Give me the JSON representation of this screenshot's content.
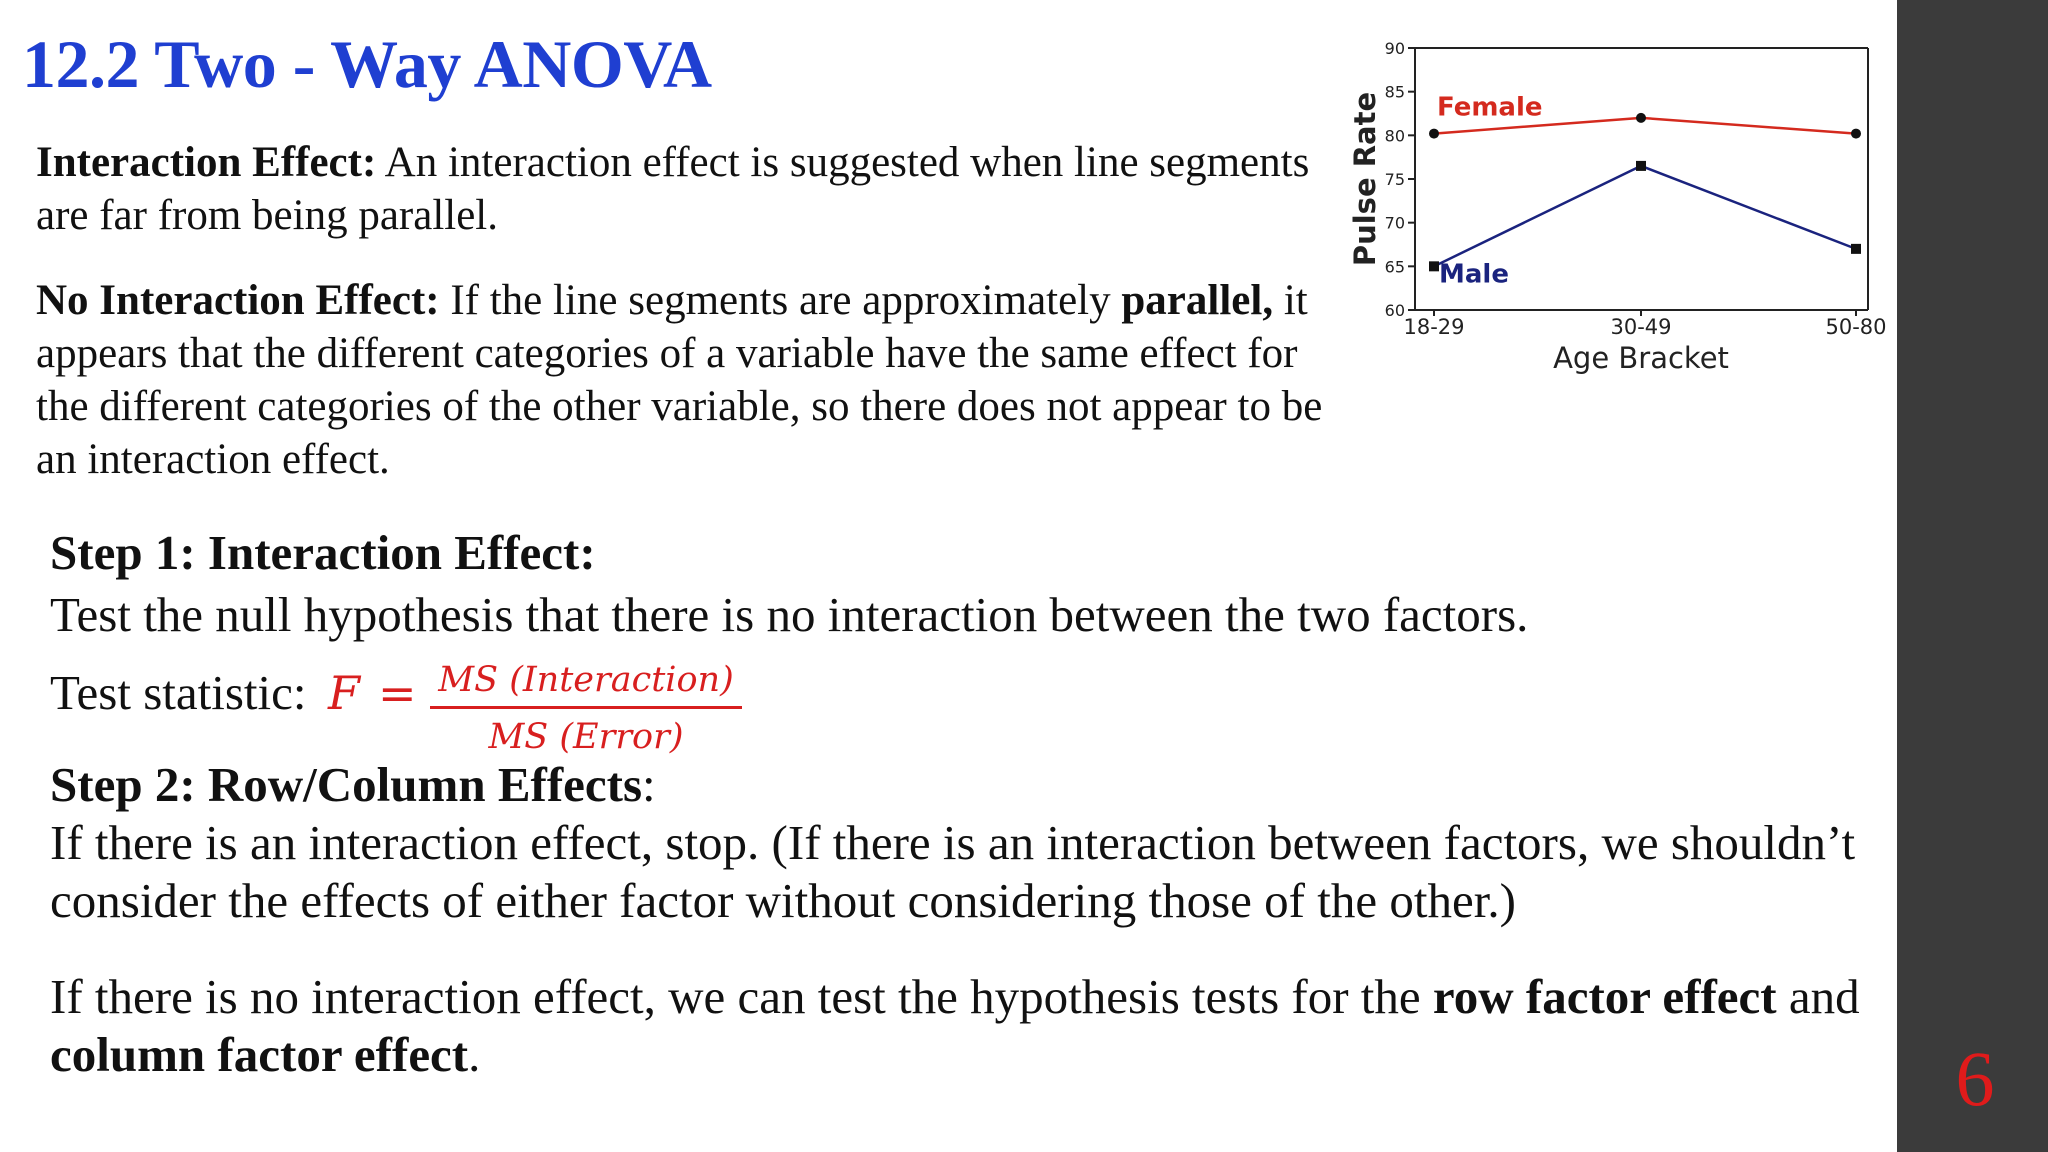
{
  "slide": {
    "title": "12.2 Two - Way ANOVA",
    "page_number": "6",
    "interaction": {
      "label": "Interaction Effect:",
      "text": " An interaction effect is suggested when line segments are far from being parallel."
    },
    "no_interaction": {
      "label": "No Interaction Effect:",
      "text_1": " If the line segments are approximately ",
      "bold_1": "parallel,",
      "text_2": " it appears that the different categories of a variable have the same effect for the different categories of the other variable, so there does not appear to be an interaction effect."
    },
    "step1": {
      "title": "Step 1: Interaction Effect:",
      "text": "Test the null hypothesis that there is no interaction between the two factors.",
      "stat_label": "Test statistic: ",
      "formula_var": "F",
      "formula_eq": "=",
      "numerator": "MS (Interaction)",
      "denominator": "MS (Error)"
    },
    "step2": {
      "title": "Step 2: Row/Column Effects",
      "title_suffix": ":",
      "text": "If there is an interaction effect, stop. (If there is an interaction between factors, we shouldn’t consider the effects of either factor without considering those of the other.)"
    },
    "step3": {
      "text_1": "If there is no interaction effect, we can test the hypothesis tests for the ",
      "bold_1": "row factor effect",
      "text_2": " and ",
      "bold_2": "column factor effect",
      "text_3": "."
    }
  },
  "colors": {
    "title": "#1f3fd1",
    "formula": "#d81f1f",
    "female_line": "#d42a1e",
    "male_line": "#1a237e",
    "sidebar": "#3b3b3b",
    "page_number": "#e01b1b"
  },
  "chart_data": {
    "type": "line",
    "categories": [
      "18-29",
      "30-49",
      "50-80"
    ],
    "xlabel": "Age Bracket",
    "ylabel": "Pulse Rate",
    "ylim": [
      60,
      90
    ],
    "yticks": [
      60,
      65,
      70,
      75,
      80,
      85,
      90
    ],
    "grid": false,
    "series": [
      {
        "name": "Female",
        "values": [
          80.2,
          82,
          80.2
        ],
        "marker": "circle"
      },
      {
        "name": "Male",
        "values": [
          65,
          76.5,
          67
        ],
        "marker": "square"
      }
    ]
  }
}
